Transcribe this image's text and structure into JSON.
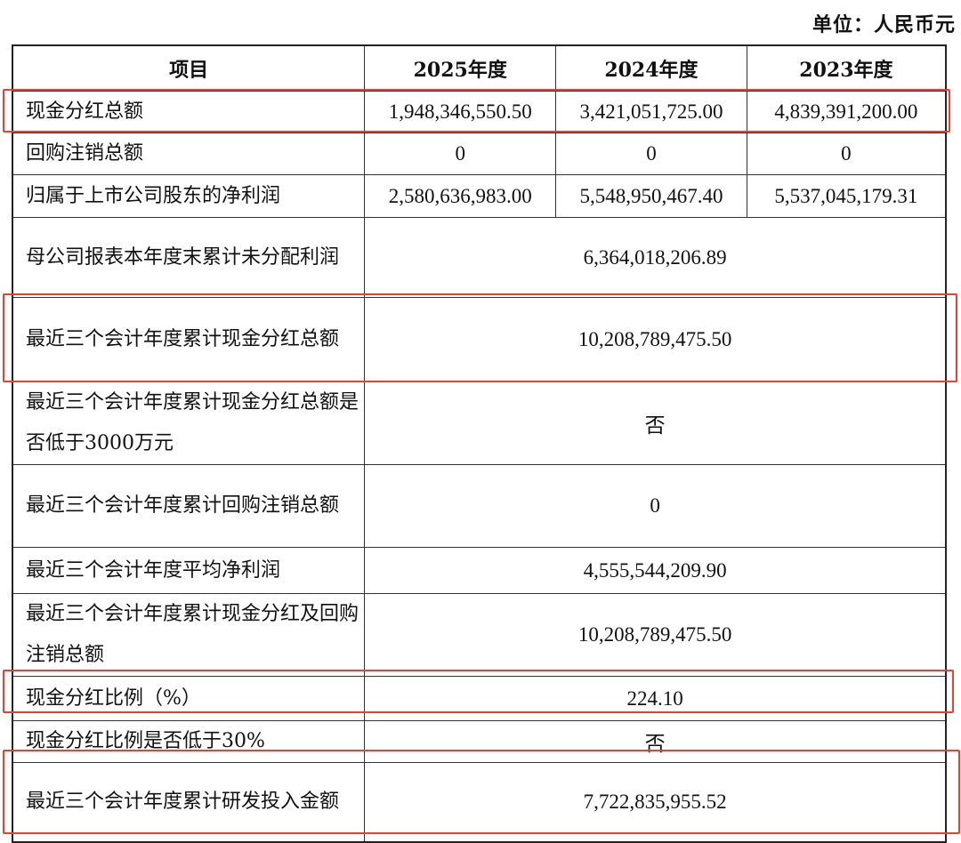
{
  "unit_label": "单位：人民币元",
  "header": [
    "项目",
    "2025年度",
    "2024年度",
    "2023年度"
  ],
  "rows": [
    {
      "label": "现金分红总额",
      "values": [
        "1,948,346,550.50",
        "3,421,051,725.00",
        "4,839,391,200.00"
      ],
      "highlighted": true
    },
    {
      "label": "回购注销总额",
      "values": [
        "0",
        "0",
        "0"
      ]
    },
    {
      "label": "归属于上市公司股东的净利润",
      "values": [
        "2,580,636,983.00",
        "5,548,950,467.40",
        "5,537,045,179.31"
      ]
    },
    {
      "label": "母公司报表本年度末累计未分配利润",
      "value": "6,364,018,206.89"
    },
    {
      "label": "最近三个会计年度累计现金分红总额",
      "value": "10,208,789,475.50",
      "highlighted": true
    },
    {
      "label": "最近三个会计年度累计现金分红总额是否低于3000万元",
      "value": "否"
    },
    {
      "label": "最近三个会计年度累计回购注销总额",
      "value": "0"
    },
    {
      "label": "最近三个会计年度平均净利润",
      "value": "4,555,544,209.90"
    },
    {
      "label": "最近三个会计年度累计现金分红及回购注销总额",
      "value": "10,208,789,475.50"
    },
    {
      "label": "现金分红比例（%）",
      "value": "224.10",
      "highlighted": true
    },
    {
      "label": "现金分红比例是否低于30%",
      "value": "否"
    },
    {
      "label": "最近三个会计年度累计研发投入金额",
      "value": "7,722,835,955.52",
      "highlighted": true
    }
  ],
  "highlight_color": "#e8412f"
}
